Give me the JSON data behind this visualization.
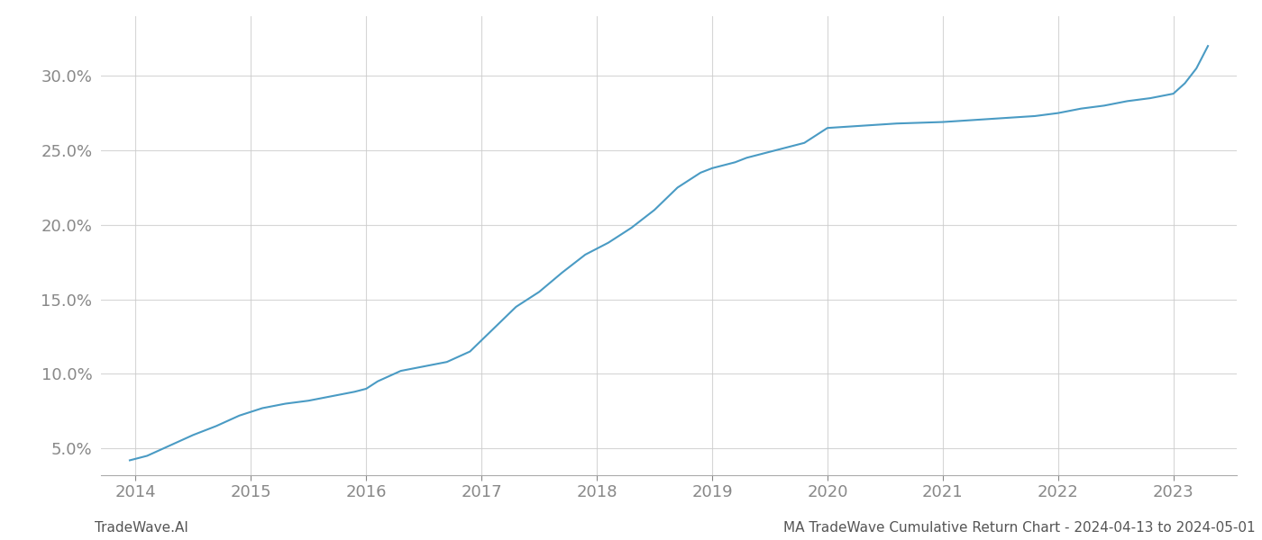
{
  "x_years": [
    2013.95,
    2014.1,
    2014.3,
    2014.5,
    2014.7,
    2014.9,
    2015.1,
    2015.3,
    2015.5,
    2015.7,
    2015.9,
    2016.0,
    2016.1,
    2016.3,
    2016.5,
    2016.7,
    2016.9,
    2017.1,
    2017.3,
    2017.5,
    2017.7,
    2017.9,
    2018.1,
    2018.3,
    2018.5,
    2018.7,
    2018.9,
    2019.0,
    2019.1,
    2019.2,
    2019.3,
    2019.4,
    2019.5,
    2019.6,
    2019.7,
    2019.8,
    2020.0,
    2020.2,
    2020.4,
    2020.5,
    2020.6,
    2020.8,
    2021.0,
    2021.2,
    2021.4,
    2021.6,
    2021.8,
    2022.0,
    2022.2,
    2022.4,
    2022.6,
    2022.8,
    2023.0,
    2023.1,
    2023.2,
    2023.3
  ],
  "y_values": [
    4.2,
    4.5,
    5.2,
    5.9,
    6.5,
    7.2,
    7.7,
    8.0,
    8.2,
    8.5,
    8.8,
    9.0,
    9.5,
    10.2,
    10.5,
    10.8,
    11.5,
    13.0,
    14.5,
    15.5,
    16.8,
    18.0,
    18.8,
    19.8,
    21.0,
    22.5,
    23.5,
    23.8,
    24.0,
    24.2,
    24.5,
    24.7,
    24.9,
    25.1,
    25.3,
    25.5,
    26.5,
    26.6,
    26.7,
    26.75,
    26.8,
    26.85,
    26.9,
    27.0,
    27.1,
    27.2,
    27.3,
    27.5,
    27.8,
    28.0,
    28.3,
    28.5,
    28.8,
    29.5,
    30.5,
    32.0
  ],
  "line_color": "#4a9bc4",
  "line_width": 1.5,
  "x_ticks": [
    2014,
    2015,
    2016,
    2017,
    2018,
    2019,
    2020,
    2021,
    2022,
    2023
  ],
  "x_tick_labels": [
    "2014",
    "2015",
    "2016",
    "2017",
    "2018",
    "2019",
    "2020",
    "2021",
    "2022",
    "2023"
  ],
  "y_ticks": [
    5.0,
    10.0,
    15.0,
    20.0,
    25.0,
    30.0
  ],
  "y_tick_labels": [
    "5.0%",
    "10.0%",
    "15.0%",
    "20.0%",
    "25.0%",
    "30.0%"
  ],
  "xlim": [
    2013.7,
    2023.55
  ],
  "ylim": [
    3.2,
    34.0
  ],
  "grid_color": "#cccccc",
  "grid_alpha": 0.8,
  "background_color": "#ffffff",
  "tick_color": "#888888",
  "tick_fontsize": 13,
  "footer_left": "TradeWave.AI",
  "footer_right": "MA TradeWave Cumulative Return Chart - 2024-04-13 to 2024-05-01",
  "footer_fontsize": 11,
  "footer_color": "#555555"
}
